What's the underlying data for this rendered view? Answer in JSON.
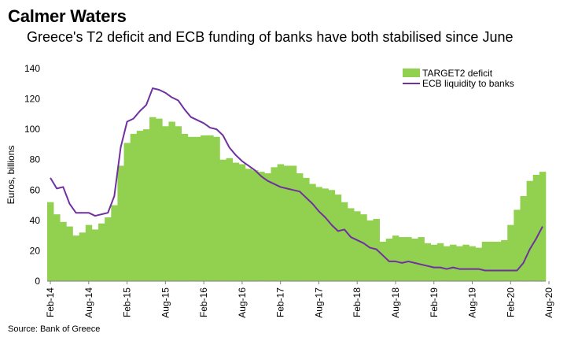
{
  "title": "Calmer Waters",
  "subtitle": "Greece's T2 deficit and ECB funding of banks have both stabilised since June",
  "source": "Source: Bank of Greece",
  "colors": {
    "bar": "#92d050",
    "line": "#7030a0",
    "axis": "#7f7f7f"
  },
  "chart_data": {
    "type": "bar",
    "title": "Calmer Waters",
    "subtitle": "Greece's T2 deficit and ECB funding of banks have both stabilised since June",
    "ylabel": "Euros, billions",
    "ylim": [
      0,
      140
    ],
    "yticks": [
      0,
      20,
      40,
      60,
      80,
      100,
      120,
      140
    ],
    "xtick_labels": [
      "Feb-14",
      "Aug-14",
      "Feb-15",
      "Aug-15",
      "Feb-16",
      "Aug-16",
      "Feb-17",
      "Aug-17",
      "Feb-18",
      "Aug-18",
      "Feb-19",
      "Aug-19",
      "Feb-20",
      "Aug-20"
    ],
    "legend_position": "top-right",
    "grid": false,
    "series": [
      {
        "name": "TARGET2 deficit",
        "type": "bar",
        "values": [
          52,
          44,
          39,
          36,
          30,
          32,
          37,
          34,
          38,
          42,
          50,
          76,
          91,
          97,
          99,
          100,
          108,
          107,
          102,
          105,
          102,
          97,
          95,
          95,
          96,
          96,
          95,
          80,
          81,
          78,
          77,
          74,
          73,
          72,
          71,
          75,
          77,
          76,
          76,
          71,
          68,
          64,
          62,
          61,
          60,
          57,
          52,
          48,
          46,
          44,
          40,
          41,
          26,
          28,
          30,
          29,
          29,
          28,
          29,
          25,
          24,
          25,
          23,
          24,
          23,
          24,
          23,
          22,
          26,
          26,
          26,
          27,
          37,
          47,
          56,
          66,
          70,
          72
        ]
      },
      {
        "name": "ECB liquidity to banks",
        "type": "line",
        "values": [
          68,
          61,
          62,
          51,
          45,
          45,
          45,
          43,
          44,
          45,
          56,
          88,
          105,
          107,
          112,
          116,
          127,
          126,
          124,
          121,
          119,
          113,
          108,
          106,
          104,
          101,
          100,
          96,
          88,
          83,
          79,
          76,
          73,
          69,
          66,
          64,
          62,
          61,
          60,
          59,
          55,
          51,
          46,
          42,
          37,
          33,
          34,
          29,
          27,
          25,
          22,
          21,
          17,
          13,
          13,
          12,
          13,
          12,
          11,
          10,
          9,
          9,
          8,
          9,
          8,
          8,
          8,
          8,
          7,
          7,
          7,
          7,
          7,
          7,
          12,
          21,
          28,
          36
        ]
      }
    ]
  }
}
